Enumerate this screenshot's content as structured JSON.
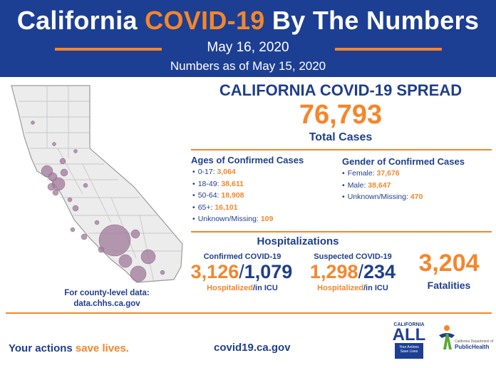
{
  "header": {
    "title_part1": "California ",
    "title_part2": "COVID-19",
    "title_part3": " By The Numbers",
    "date": "May 16, 2020",
    "as_of": "Numbers as of May 15, 2020"
  },
  "map": {
    "caption_line1": "For county-level data:",
    "caption_line2": "data.chhs.ca.gov"
  },
  "spread": {
    "title": "CALIFORNIA COVID-19 SPREAD",
    "total_cases": "76,793",
    "total_label": "Total Cases"
  },
  "ages": {
    "heading": "Ages of Confirmed Cases",
    "items": [
      {
        "label": "0-17:",
        "value": "3,064"
      },
      {
        "label": "18-49:",
        "value": "38,611"
      },
      {
        "label": "50-64:",
        "value": "18,908"
      },
      {
        "label": "65+:",
        "value": "16,101"
      },
      {
        "label": "Unknown/Missing:",
        "value": "109"
      }
    ]
  },
  "gender": {
    "heading": "Gender of Confirmed Cases",
    "items": [
      {
        "label": "Female:",
        "value": "37,676"
      },
      {
        "label": "Male:",
        "value": "38,647"
      },
      {
        "label": "Unknown/Missing:",
        "value": "470"
      }
    ]
  },
  "hospitalizations": {
    "title": "Hospitalizations",
    "confirmed": {
      "label": "Confirmed COVID-19",
      "hospitalized": "3,126",
      "icu": "1,079"
    },
    "suspected": {
      "label": "Suspected COVID-19",
      "hospitalized": "1,298",
      "icu": "234"
    },
    "separator": "/",
    "hosp_word": "Hospitalized",
    "icu_word": "/in ICU"
  },
  "fatalities": {
    "value": "3,204",
    "label": "Fatalities"
  },
  "footer": {
    "tag_part1": "Your actions ",
    "tag_part2": "save lives.",
    "url": "covid19.ca.gov",
    "logo_all_top": "CALIFORNIA",
    "logo_all_word": "ALL",
    "logo_all_box": "Your Actions Save Lives",
    "logo_ph_small": "California Department of",
    "logo_ph_big": "PublicHealth"
  },
  "colors": {
    "navy": "#1c3f94",
    "text_blue": "#1f3e8c",
    "orange": "#f5862a",
    "bubble": "#a07a9a"
  }
}
